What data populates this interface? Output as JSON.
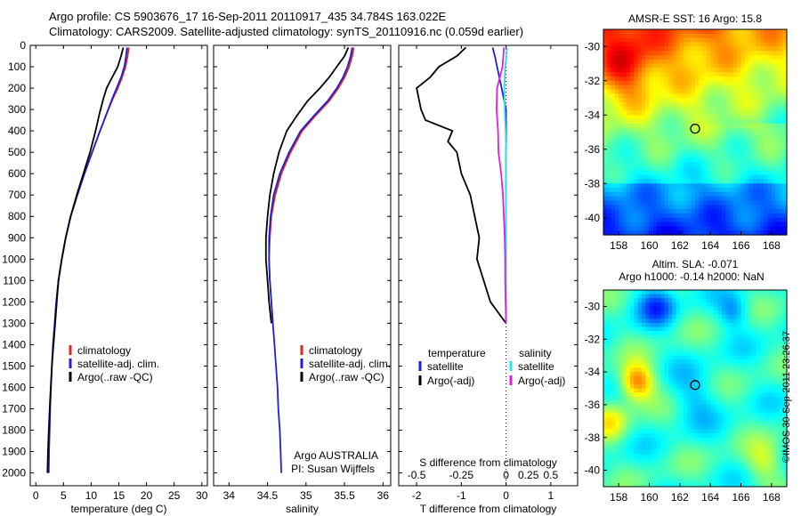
{
  "header": {
    "line1": "Argo profile: CS 5903676_17 16-Sep-2011 20110917_435 34.784S 163.022E",
    "line2": "Climatology: CARS2009. Satellite-adjusted climatology: synTS_20110916.nc (0.059d earlier)"
  },
  "footer": "©IMOS 30-Sep-2011 23:26:37",
  "colors": {
    "climatology": "#e8231f",
    "satellite": "#1f1fd6",
    "argo": "#000000",
    "sal_satellite": "#2fe0e6",
    "sal_argo": "#e01fe0"
  },
  "chart_data": [
    {
      "type": "line",
      "id": "temperature",
      "xlabel": "temperature (deg C)",
      "xlim": [
        -1,
        31
      ],
      "xticks": [
        0,
        5,
        10,
        15,
        20,
        25,
        30
      ],
      "ylabel": "",
      "ylim": [
        0,
        2060
      ],
      "yticks": [
        0,
        100,
        200,
        300,
        400,
        500,
        600,
        700,
        800,
        900,
        1000,
        1100,
        1200,
        1300,
        1400,
        1500,
        1600,
        1700,
        1800,
        1900,
        2000
      ],
      "legend": [
        "climatology",
        "satellite-adj. clim.",
        "Argo(..raw -QC)"
      ],
      "series": [
        {
          "name": "climatology",
          "color": "#e8231f",
          "points": [
            [
              16.8,
              10
            ],
            [
              16.6,
              50
            ],
            [
              16.2,
              100
            ],
            [
              15.6,
              150
            ],
            [
              14.8,
              200
            ],
            [
              13.9,
              250
            ],
            [
              12.8,
              320
            ],
            [
              11.6,
              400
            ],
            [
              10.2,
              500
            ],
            [
              8.8,
              600
            ],
            [
              7.5,
              700
            ],
            [
              6.3,
              800
            ],
            [
              5.4,
              900
            ],
            [
              4.7,
              1000
            ],
            [
              4.1,
              1100
            ],
            [
              3.7,
              1200
            ],
            [
              3.4,
              1300
            ]
          ]
        },
        {
          "name": "satellite-adj. clim.",
          "color": "#1f1fd6",
          "points": [
            [
              16.5,
              10
            ],
            [
              16.3,
              50
            ],
            [
              16.0,
              100
            ],
            [
              15.4,
              150
            ],
            [
              14.6,
              200
            ],
            [
              13.8,
              250
            ],
            [
              12.8,
              320
            ],
            [
              11.6,
              400
            ],
            [
              10.2,
              500
            ],
            [
              8.8,
              600
            ],
            [
              7.5,
              700
            ],
            [
              6.3,
              800
            ],
            [
              5.4,
              900
            ],
            [
              4.7,
              1000
            ],
            [
              4.1,
              1100
            ],
            [
              3.7,
              1200
            ],
            [
              3.4,
              1300
            ],
            [
              3.1,
              1400
            ],
            [
              2.9,
              1500
            ],
            [
              2.75,
              1600
            ],
            [
              2.6,
              1700
            ],
            [
              2.5,
              1800
            ],
            [
              2.4,
              1900
            ],
            [
              2.35,
              2000
            ]
          ]
        },
        {
          "name": "Argo(..raw -QC)",
          "color": "#000000",
          "points": [
            [
              15.8,
              10
            ],
            [
              15.4,
              50
            ],
            [
              14.8,
              100
            ],
            [
              13.8,
              150
            ],
            [
              12.8,
              200
            ],
            [
              12.2,
              250
            ],
            [
              11.5,
              320
            ],
            [
              10.8,
              400
            ],
            [
              9.8,
              500
            ],
            [
              8.6,
              600
            ],
            [
              7.4,
              700
            ],
            [
              6.3,
              800
            ],
            [
              5.4,
              900
            ],
            [
              4.7,
              1000
            ],
            [
              4.1,
              1100
            ],
            [
              3.8,
              1200
            ],
            [
              3.5,
              1300
            ],
            [
              3.2,
              1400
            ],
            [
              2.9,
              1500
            ],
            [
              2.7,
              1600
            ],
            [
              2.5,
              1700
            ],
            [
              2.35,
              1800
            ],
            [
              2.2,
              1900
            ],
            [
              2.1,
              2000
            ]
          ]
        }
      ]
    },
    {
      "type": "line",
      "id": "salinity",
      "xlabel": "salinity",
      "xlim": [
        33.8,
        36.1
      ],
      "xticks": [
        34,
        34.5,
        35,
        35.5,
        36
      ],
      "ylim": [
        0,
        2060
      ],
      "legend": [
        "climatology",
        "satellite-adj. clim.",
        "Argo(..raw -QC)"
      ],
      "annotation": [
        "Argo AUSTRALIA",
        "PI: Susan Wijffels"
      ],
      "series": [
        {
          "name": "climatology",
          "color": "#e8231f",
          "points": [
            [
              35.62,
              10
            ],
            [
              35.6,
              50
            ],
            [
              35.56,
              100
            ],
            [
              35.5,
              150
            ],
            [
              35.42,
              200
            ],
            [
              35.3,
              260
            ],
            [
              35.12,
              330
            ],
            [
              34.95,
              400
            ],
            [
              34.8,
              500
            ],
            [
              34.68,
              600
            ],
            [
              34.6,
              700
            ],
            [
              34.55,
              800
            ],
            [
              34.53,
              900
            ],
            [
              34.52,
              1000
            ],
            [
              34.53,
              1100
            ],
            [
              34.55,
              1200
            ],
            [
              34.57,
              1300
            ]
          ]
        },
        {
          "name": "satellite-adj. clim.",
          "color": "#1f1fd6",
          "points": [
            [
              35.6,
              10
            ],
            [
              35.58,
              50
            ],
            [
              35.54,
              100
            ],
            [
              35.48,
              150
            ],
            [
              35.4,
              200
            ],
            [
              35.28,
              260
            ],
            [
              35.1,
              330
            ],
            [
              34.93,
              400
            ],
            [
              34.78,
              500
            ],
            [
              34.66,
              600
            ],
            [
              34.58,
              700
            ],
            [
              34.54,
              800
            ],
            [
              34.52,
              900
            ],
            [
              34.52,
              1000
            ],
            [
              34.53,
              1100
            ],
            [
              34.55,
              1200
            ],
            [
              34.57,
              1300
            ],
            [
              34.59,
              1400
            ],
            [
              34.61,
              1500
            ],
            [
              34.63,
              1600
            ],
            [
              34.64,
              1700
            ],
            [
              34.66,
              1800
            ],
            [
              34.67,
              1900
            ],
            [
              34.68,
              2000
            ]
          ]
        },
        {
          "name": "Argo(..raw -QC)",
          "color": "#000000",
          "points": [
            [
              35.55,
              10
            ],
            [
              35.5,
              50
            ],
            [
              35.4,
              100
            ],
            [
              35.3,
              150
            ],
            [
              35.18,
              200
            ],
            [
              35.02,
              260
            ],
            [
              34.88,
              330
            ],
            [
              34.75,
              400
            ],
            [
              34.65,
              500
            ],
            [
              34.58,
              600
            ],
            [
              34.53,
              700
            ],
            [
              34.5,
              800
            ],
            [
              34.48,
              900
            ],
            [
              34.48,
              1000
            ],
            [
              34.5,
              1100
            ],
            [
              34.52,
              1200
            ],
            [
              34.55,
              1300
            ]
          ]
        }
      ]
    },
    {
      "type": "line",
      "id": "difference",
      "xlabel": "T difference from climatology",
      "xlim": [
        -2.4,
        1.6
      ],
      "xticks": [
        -2,
        -1,
        0,
        1
      ],
      "xlabel_top": "S difference from climatology",
      "xticks_top": [
        "-0.5",
        "-0.25",
        "0",
        "0.25",
        "0.5"
      ],
      "ylim": [
        0,
        2060
      ],
      "legend": {
        "temperature": [
          "satellite",
          "Argo(-adj)"
        ],
        "salinity": [
          "satellite",
          "Argo(-adj)"
        ]
      },
      "legend_heads": [
        "temperature",
        "salinity"
      ],
      "series": [
        {
          "name": "temperature satellite",
          "color": "#1f1fd6",
          "points": [
            [
              -0.3,
              10
            ],
            [
              -0.25,
              50
            ],
            [
              -0.2,
              100
            ],
            [
              -0.1,
              200
            ],
            [
              0,
              300
            ],
            [
              0,
              600
            ],
            [
              0,
              1000
            ],
            [
              0,
              1300
            ]
          ]
        },
        {
          "name": "temperature Argo(-adj)",
          "color": "#000000",
          "points": [
            [
              -0.9,
              10
            ],
            [
              -1.1,
              50
            ],
            [
              -1.5,
              100
            ],
            [
              -1.7,
              150
            ],
            [
              -2.0,
              200
            ],
            [
              -1.9,
              300
            ],
            [
              -1.8,
              350
            ],
            [
              -1.2,
              400
            ],
            [
              -1.3,
              450
            ],
            [
              -1.1,
              500
            ],
            [
              -1.0,
              600
            ],
            [
              -0.8,
              700
            ],
            [
              -0.7,
              800
            ],
            [
              -0.6,
              900
            ],
            [
              -0.65,
              1000
            ],
            [
              -0.5,
              1100
            ],
            [
              -0.35,
              1200
            ],
            [
              0,
              1300
            ]
          ]
        },
        {
          "name": "salinity satellite",
          "color": "#2fe0e6",
          "points": [
            [
              0.02,
              10
            ],
            [
              0.01,
              50
            ],
            [
              -0.02,
              100
            ],
            [
              -0.04,
              200
            ],
            [
              -0.03,
              300
            ],
            [
              -0.01,
              400
            ],
            [
              0,
              500
            ],
            [
              0,
              700
            ],
            [
              0,
              1000
            ],
            [
              0,
              1300
            ]
          ]
        },
        {
          "name": "salinity Argo(-adj)",
          "color": "#e01fe0",
          "points": [
            [
              -0.05,
              10
            ],
            [
              -0.06,
              50
            ],
            [
              -0.08,
              100
            ],
            [
              -0.14,
              150
            ],
            [
              -0.2,
              200
            ],
            [
              -0.21,
              300
            ],
            [
              -0.18,
              400
            ],
            [
              -0.17,
              500
            ],
            [
              -0.11,
              600
            ],
            [
              -0.07,
              700
            ],
            [
              -0.05,
              800
            ],
            [
              -0.03,
              900
            ],
            [
              -0.02,
              1000
            ],
            [
              -0.02,
              1100
            ],
            [
              -0.01,
              1200
            ],
            [
              0,
              1300
            ]
          ]
        }
      ]
    },
    {
      "type": "heatmap",
      "id": "sst",
      "title": "AMSR-E SST: 16 Argo: 15.8",
      "xlim": [
        157,
        169
      ],
      "ylim": [
        -41,
        -29
      ],
      "xticks": [
        158,
        160,
        162,
        164,
        166,
        168
      ],
      "yticks": [
        -30,
        -32,
        -34,
        -36,
        -38,
        -40
      ],
      "marker": [
        163.0,
        -34.8
      ]
    },
    {
      "type": "heatmap",
      "id": "sla",
      "title": [
        "Altim. SLA: -0.071",
        "Argo h1000: -0.14 h2000: NaN"
      ],
      "xlim": [
        157,
        169
      ],
      "ylim": [
        -41,
        -29
      ],
      "xticks": [
        158,
        160,
        162,
        164,
        166,
        168
      ],
      "yticks": [
        -30,
        -32,
        -34,
        -36,
        -38,
        -40
      ],
      "marker": [
        163.0,
        -34.8
      ]
    }
  ]
}
